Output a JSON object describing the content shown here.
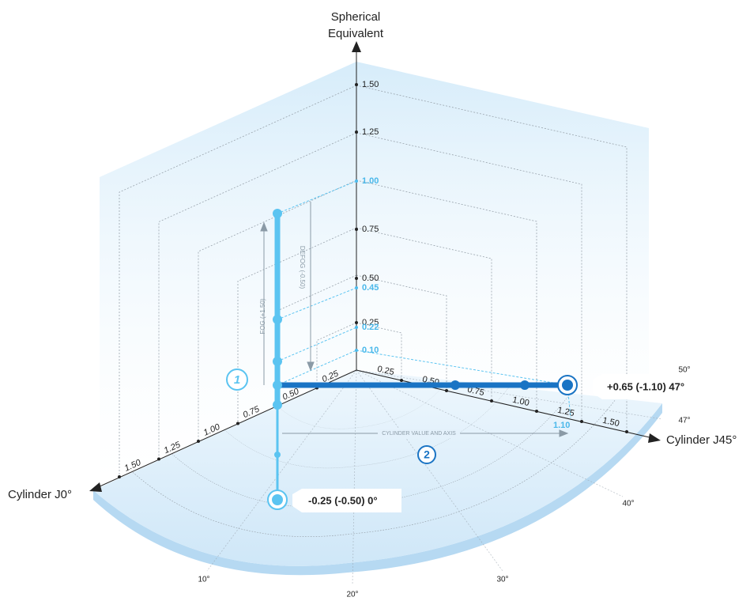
{
  "axes": {
    "vertical": {
      "title": [
        "Spherical",
        "Equivalent"
      ],
      "ticks": [
        {
          "label": "1.50",
          "highlight": false
        },
        {
          "label": "1.25",
          "highlight": false
        },
        {
          "label": "1.00",
          "highlight": true
        },
        {
          "label": "0.75",
          "highlight": false
        },
        {
          "label": "0.50",
          "highlight": false
        },
        {
          "label": "0.45",
          "highlight": true
        },
        {
          "label": "0.25",
          "highlight": false
        },
        {
          "label": "0.22",
          "highlight": true
        },
        {
          "label": "0.10",
          "highlight": true
        }
      ]
    },
    "j45": {
      "title": "Cylinder J45°",
      "ticks": [
        "0.25",
        "0.50",
        "0.75",
        "1.00",
        "1.25",
        "1.50"
      ],
      "highlight": "1.10"
    },
    "j0": {
      "title": "Cylinder J0°",
      "ticks": [
        "0.25",
        "0.50",
        "0.75",
        "1.00",
        "1.25",
        "1.50"
      ]
    }
  },
  "angles": [
    "10°",
    "20°",
    "30°",
    "40°",
    "47°",
    "50°"
  ],
  "annotations": {
    "fog": "FOG (+1.50)",
    "defog": "DEFOG (-0.50)",
    "cylinder": "CYLINDER VALUE AND AXIS",
    "step1": "1",
    "step2": "2"
  },
  "callouts": [
    "+0.65 (-1.10) 47°",
    "-0.25 (-0.50) 0°"
  ]
}
